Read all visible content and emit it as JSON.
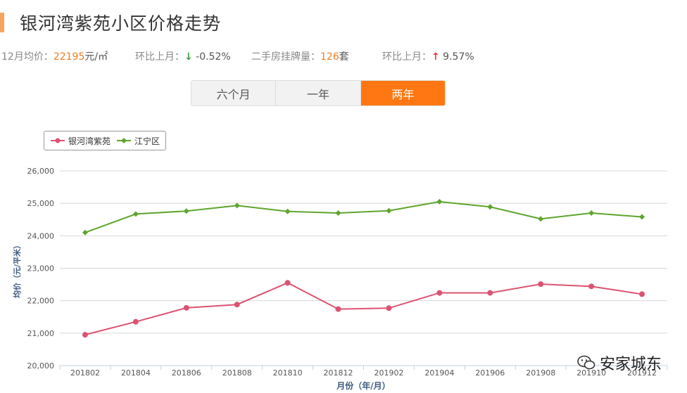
{
  "header": {
    "title": "银河湾紫苑小区价格走势"
  },
  "stats": {
    "avg_label": "12月均价：",
    "avg_value": "22195",
    "avg_unit": "元/㎡",
    "mom1_label": "环比上月：",
    "mom1_arrow": "↓",
    "mom1_value": " -0.52%",
    "listing_label": "二手房挂牌量：",
    "listing_value": "126",
    "listing_unit": "套",
    "mom2_label": "环比上月：",
    "mom2_arrow": "↑",
    "mom2_value": " 9.57%"
  },
  "tabs": [
    {
      "label": "六个月",
      "active": false
    },
    {
      "label": "一年",
      "active": false
    },
    {
      "label": "两年",
      "active": true
    }
  ],
  "colors": {
    "series1": "#dc5371",
    "series2": "#5ea52d",
    "accent": "#ff7712",
    "orange_text": "#f07c22"
  },
  "watermark": {
    "text": "安家城东"
  },
  "chart_data": {
    "type": "line",
    "xlabel": "月份（年/月）",
    "ylabel": "均价（元/平米）",
    "ylim": [
      20000,
      26000
    ],
    "yticks": [
      20000,
      21000,
      22000,
      23000,
      24000,
      25000,
      26000
    ],
    "ytick_labels": [
      "20,000",
      "21,000",
      "22,000",
      "23,000",
      "24,000",
      "25,000",
      "26,000"
    ],
    "categories": [
      "201802",
      "201804",
      "201806",
      "201808",
      "201810",
      "201812",
      "201902",
      "201904",
      "201906",
      "201908",
      "201910",
      "201912"
    ],
    "legend_position": "top-left",
    "grid": true,
    "series": [
      {
        "name": "银河湾紫苑",
        "marker": "circle",
        "values": [
          20950,
          21350,
          21780,
          21880,
          22550,
          21740,
          21770,
          22240,
          22240,
          22510,
          22440,
          22200
        ]
      },
      {
        "name": "江宁区",
        "marker": "diamond",
        "values": [
          24100,
          24670,
          24760,
          24930,
          24750,
          24700,
          24770,
          25050,
          24890,
          24520,
          24700,
          24580
        ]
      }
    ]
  }
}
